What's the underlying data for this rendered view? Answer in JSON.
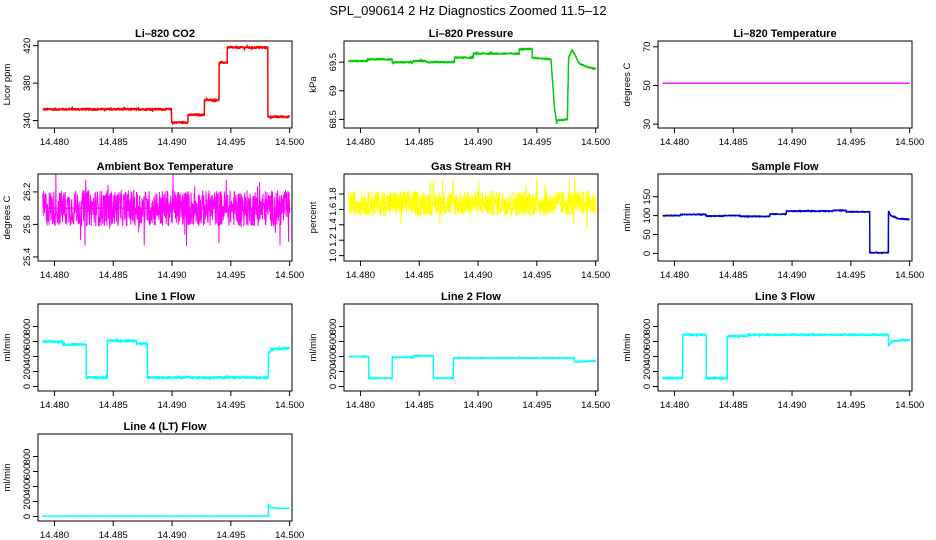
{
  "title": "SPL_090614  2 Hz Diagnostics Zoomed 11.5–12",
  "chart_data": [
    {
      "type": "line",
      "title": "Li–820 CO2",
      "ylabel": "Licor ppm",
      "color": "#ff0000",
      "xlim": [
        14.4786,
        14.5002
      ],
      "ylim": [
        332,
        425
      ],
      "xticks": [
        14.48,
        14.485,
        14.49,
        14.495,
        14.5
      ],
      "xticklabels": [
        "14.480",
        "14.485",
        "14.490",
        "14.495",
        "14.500"
      ],
      "yticks": [
        340,
        380,
        420
      ],
      "yticklabels": [
        "340",
        "380",
        "420"
      ],
      "noise": 1.2,
      "series": [
        {
          "x": [
            14.479,
            14.48995,
            14.48995,
            14.49135,
            14.49135,
            14.49275,
            14.49275,
            14.494,
            14.494,
            14.4947,
            14.4947,
            14.49815,
            14.49815,
            14.5
          ],
          "y": [
            352,
            352,
            338,
            338,
            346,
            346,
            362,
            362,
            402,
            402,
            418,
            418,
            344,
            344
          ]
        }
      ]
    },
    {
      "type": "line",
      "title": "Li–820 Pressure",
      "ylabel": "kPa",
      "color": "#00cc00",
      "xlim": [
        14.4786,
        14.5002
      ],
      "ylim": [
        68.35,
        69.87
      ],
      "xticks": [
        14.48,
        14.485,
        14.49,
        14.495,
        14.5
      ],
      "xticklabels": [
        "14.480",
        "14.485",
        "14.490",
        "14.495",
        "14.500"
      ],
      "yticks": [
        68.5,
        69.0,
        69.5
      ],
      "yticklabels": [
        "68.5",
        "69",
        "69.5"
      ],
      "noise": 0.015,
      "series": [
        {
          "x": [
            14.479,
            14.4806,
            14.4806,
            14.4827,
            14.4827,
            14.4845,
            14.4845,
            14.4856,
            14.4856,
            14.488,
            14.488,
            14.4896,
            14.4896,
            14.4935,
            14.4935,
            14.4946,
            14.4946,
            14.4962,
            14.4965,
            14.4967,
            14.4967,
            14.4976,
            14.4977,
            14.498,
            14.4986,
            14.4992,
            14.5
          ],
          "y": [
            69.52,
            69.52,
            69.55,
            69.55,
            69.5,
            69.5,
            69.52,
            69.52,
            69.5,
            69.5,
            69.58,
            69.58,
            69.65,
            69.65,
            69.73,
            69.73,
            69.58,
            69.55,
            68.7,
            68.42,
            68.48,
            68.5,
            69.58,
            69.72,
            69.48,
            69.42,
            69.38
          ]
        }
      ]
    },
    {
      "type": "line",
      "title": "Li–820 Temperature",
      "ylabel": "degrees C",
      "color": "#ff00ff",
      "xlim": [
        14.4786,
        14.5002
      ],
      "ylim": [
        28,
        73
      ],
      "xticks": [
        14.48,
        14.485,
        14.49,
        14.495,
        14.5
      ],
      "xticklabels": [
        "14.480",
        "14.485",
        "14.490",
        "14.495",
        "14.500"
      ],
      "yticks": [
        30,
        50,
        70
      ],
      "yticklabels": [
        "30",
        "50",
        "70"
      ],
      "noise": 0,
      "series": [
        {
          "x": [
            14.479,
            14.5
          ],
          "y": [
            51.2,
            51.2
          ]
        }
      ]
    },
    {
      "type": "line",
      "title": "Ambient Box Temperature",
      "ylabel": "degrees C",
      "color": "#ff00ff",
      "xlim": [
        14.4786,
        14.5002
      ],
      "ylim": [
        25.35,
        26.42
      ],
      "xticks": [
        14.48,
        14.485,
        14.49,
        14.495,
        14.5
      ],
      "xticklabels": [
        "14.480",
        "14.485",
        "14.490",
        "14.495",
        "14.500"
      ],
      "yticks": [
        25.4,
        25.8,
        26.2
      ],
      "yticklabels": [
        "25.4",
        "25.8",
        "26.2"
      ],
      "noise": 0.22,
      "series": [
        {
          "x": [
            14.479,
            14.5
          ],
          "y": [
            26.0,
            26.0
          ]
        }
      ]
    },
    {
      "type": "line",
      "title": "Gas Stream RH",
      "ylabel": "percent",
      "color": "#ffff00",
      "xlim": [
        14.4786,
        14.5002
      ],
      "ylim": [
        0.93,
        2.06
      ],
      "xticks": [
        14.48,
        14.485,
        14.49,
        14.495,
        14.5
      ],
      "xticklabels": [
        "14.480",
        "14.485",
        "14.490",
        "14.495",
        "14.500"
      ],
      "yticks": [
        1.0,
        1.2,
        1.4,
        1.6,
        1.8
      ],
      "yticklabels": [
        "1.0",
        "1.2",
        "1.4",
        "1.6",
        "1.8"
      ],
      "noise": 0.16,
      "series": [
        {
          "x": [
            14.479,
            14.5
          ],
          "y": [
            1.68,
            1.68
          ]
        }
      ]
    },
    {
      "type": "line",
      "title": "Sample Flow",
      "ylabel": "ml/min",
      "color": "#0000cc",
      "xlim": [
        14.4786,
        14.5002
      ],
      "ylim": [
        -20,
        210
      ],
      "xticks": [
        14.48,
        14.485,
        14.49,
        14.495,
        14.5
      ],
      "xticklabels": [
        "14.480",
        "14.485",
        "14.490",
        "14.495",
        "14.500"
      ],
      "yticks": [
        0,
        50,
        100,
        150
      ],
      "yticklabels": [
        "0",
        "50",
        "100",
        "150"
      ],
      "noise": 1.5,
      "series": [
        {
          "x": [
            14.479,
            14.4805,
            14.4805,
            14.4827,
            14.4827,
            14.4842,
            14.4842,
            14.4856,
            14.4856,
            14.4881,
            14.4881,
            14.4895,
            14.4895,
            14.4935,
            14.4935,
            14.4946,
            14.4946,
            14.4966,
            14.4966,
            14.4982,
            14.4982,
            14.4984,
            14.499,
            14.5
          ],
          "y": [
            100,
            100,
            103,
            103,
            99,
            99,
            100,
            100,
            98,
            98,
            104,
            104,
            112,
            112,
            114,
            114,
            110,
            110,
            2,
            2,
            112,
            100,
            92,
            90
          ]
        }
      ]
    },
    {
      "type": "line",
      "title": "Line 1 Flow",
      "ylabel": "ml/min",
      "color": "#00ffff",
      "xlim": [
        14.4786,
        14.5002
      ],
      "ylim": [
        -60,
        1100
      ],
      "xticks": [
        14.48,
        14.485,
        14.49,
        14.495,
        14.5
      ],
      "xticklabels": [
        "14.480",
        "14.485",
        "14.490",
        "14.495",
        "14.500"
      ],
      "yticks": [
        0,
        200,
        400,
        600,
        800
      ],
      "yticklabels": [
        "0",
        "200",
        "400",
        "600",
        "800"
      ],
      "noise": 15,
      "series": [
        {
          "x": [
            14.479,
            14.4807,
            14.4807,
            14.4827,
            14.4827,
            14.4845,
            14.4845,
            14.487,
            14.487,
            14.4879,
            14.4879,
            14.4982,
            14.4982,
            14.4986,
            14.5
          ],
          "y": [
            600,
            600,
            560,
            560,
            120,
            120,
            610,
            610,
            570,
            570,
            120,
            120,
            450,
            500,
            510
          ]
        }
      ]
    },
    {
      "type": "line",
      "title": "Line 2 Flow",
      "ylabel": "ml/min",
      "color": "#00ffff",
      "xlim": [
        14.4786,
        14.5002
      ],
      "ylim": [
        -60,
        1100
      ],
      "xticks": [
        14.48,
        14.485,
        14.49,
        14.495,
        14.5
      ],
      "xticklabels": [
        "14.480",
        "14.485",
        "14.490",
        "14.495",
        "14.500"
      ],
      "yticks": [
        0,
        200,
        400,
        600,
        800
      ],
      "yticklabels": [
        "0",
        "200",
        "400",
        "600",
        "800"
      ],
      "noise": 8,
      "series": [
        {
          "x": [
            14.479,
            14.4807,
            14.4807,
            14.4827,
            14.4827,
            14.4845,
            14.4845,
            14.4862,
            14.4862,
            14.4879,
            14.4879,
            14.4982,
            14.4982,
            14.5
          ],
          "y": [
            400,
            400,
            110,
            110,
            390,
            390,
            410,
            410,
            110,
            110,
            380,
            380,
            330,
            340
          ]
        }
      ]
    },
    {
      "type": "line",
      "title": "Line 3 Flow",
      "ylabel": "ml/min",
      "color": "#00ffff",
      "xlim": [
        14.4786,
        14.5002
      ],
      "ylim": [
        -60,
        1100
      ],
      "xticks": [
        14.48,
        14.485,
        14.49,
        14.495,
        14.5
      ],
      "xticklabels": [
        "14.480",
        "14.485",
        "14.490",
        "14.495",
        "14.500"
      ],
      "yticks": [
        0,
        200,
        400,
        600,
        800
      ],
      "yticklabels": [
        "0",
        "200",
        "400",
        "600",
        "800"
      ],
      "noise": 12,
      "series": [
        {
          "x": [
            14.479,
            14.4807,
            14.4807,
            14.4827,
            14.4827,
            14.4845,
            14.4845,
            14.4862,
            14.4862,
            14.4982,
            14.4982,
            14.4986,
            14.5
          ],
          "y": [
            110,
            110,
            690,
            690,
            110,
            110,
            670,
            670,
            690,
            690,
            550,
            610,
            620
          ]
        }
      ]
    },
    {
      "type": "line",
      "title": "Line 4 (LT) Flow",
      "ylabel": "ml/min",
      "color": "#00ffff",
      "xlim": [
        14.4786,
        14.5002
      ],
      "ylim": [
        -60,
        1100
      ],
      "xticks": [
        14.48,
        14.485,
        14.49,
        14.495,
        14.5
      ],
      "xticklabels": [
        "14.480",
        "14.485",
        "14.490",
        "14.495",
        "14.500"
      ],
      "yticks": [
        0,
        200,
        400,
        600,
        800
      ],
      "yticklabels": [
        "0",
        "200",
        "400",
        "600",
        "800"
      ],
      "noise": 3,
      "series": [
        {
          "x": [
            14.479,
            14.4982,
            14.4982,
            14.4984,
            14.499,
            14.5
          ],
          "y": [
            5,
            5,
            160,
            120,
            110,
            110
          ]
        }
      ]
    }
  ]
}
